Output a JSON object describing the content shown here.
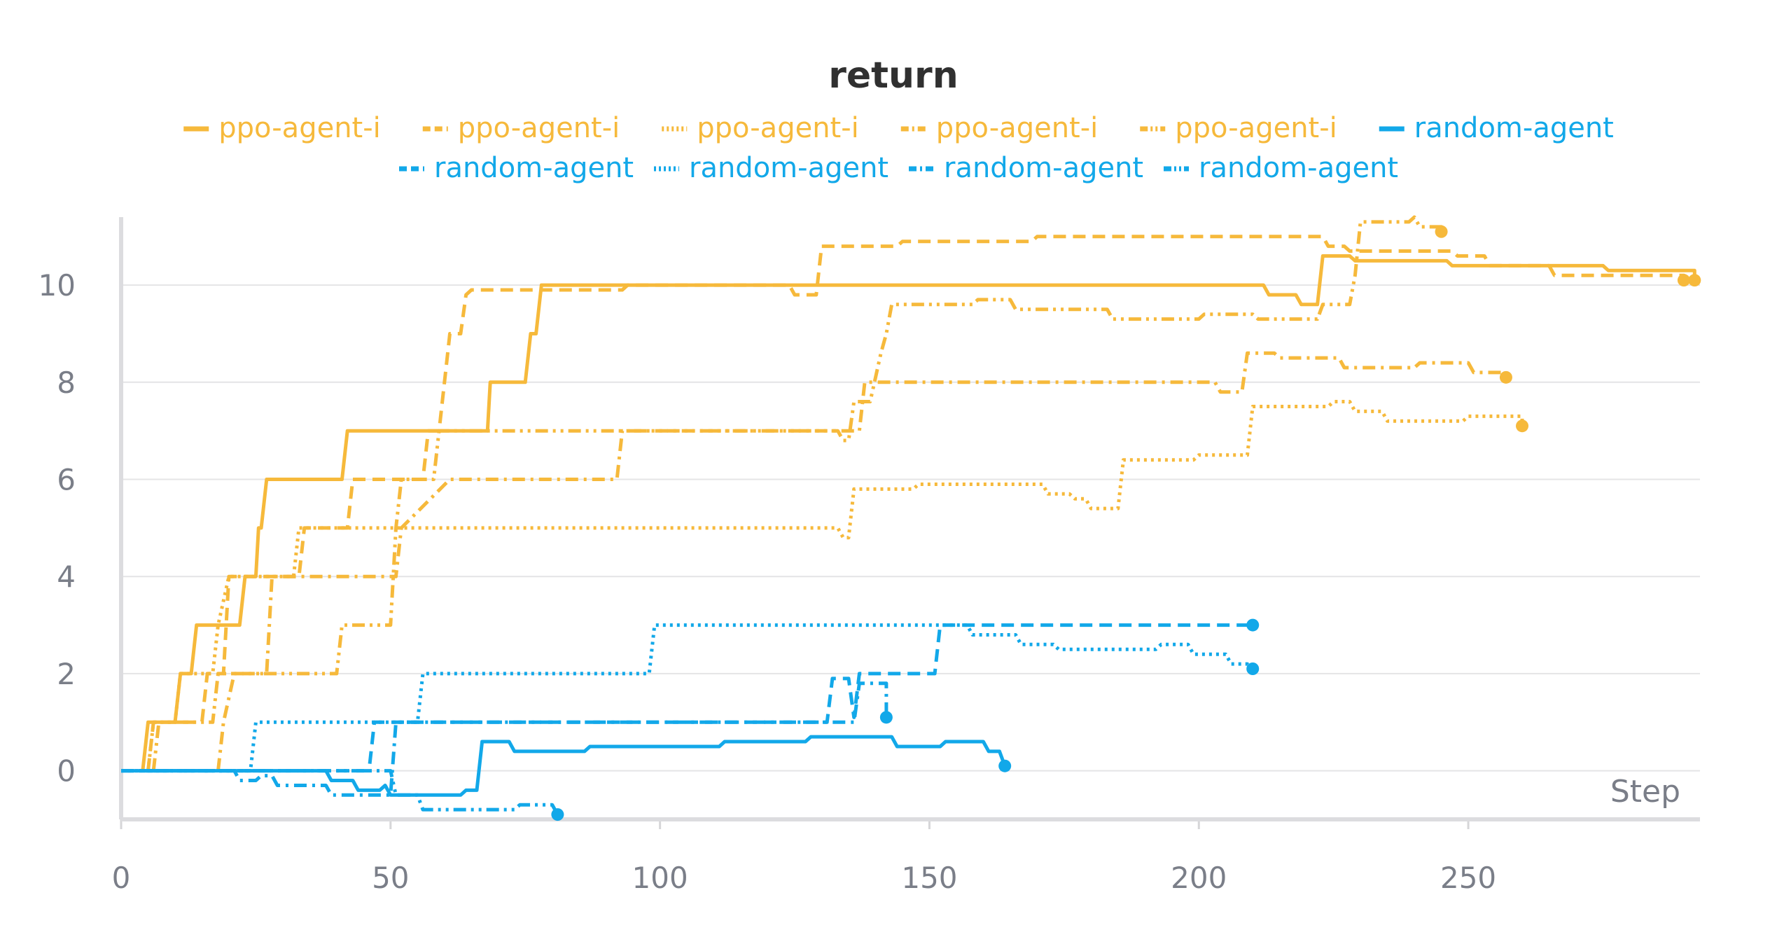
{
  "chart_data": {
    "type": "line",
    "title": "return",
    "xlabel": "Step",
    "ylabel": "",
    "xlim": [
      0,
      293
    ],
    "ylim": [
      -1,
      11.4
    ],
    "xticks": [
      0,
      50,
      100,
      150,
      200,
      250
    ],
    "yticks": [
      0,
      2,
      4,
      6,
      8,
      10
    ],
    "grid": "horizontal",
    "legend_position": "top",
    "colors": {
      "ppo": "#f6b93b",
      "random": "#12a8e9"
    },
    "series": [
      {
        "name": "ppo-agent-i",
        "color": "#f6b93b",
        "dash": "solid",
        "points": [
          [
            4,
            0
          ],
          [
            5,
            1
          ],
          [
            10,
            1
          ],
          [
            11,
            2
          ],
          [
            13,
            2
          ],
          [
            14,
            3
          ],
          [
            22,
            3
          ],
          [
            23,
            4
          ],
          [
            25,
            4
          ],
          [
            25.5,
            5
          ],
          [
            26,
            5
          ],
          [
            27,
            6
          ],
          [
            41,
            6
          ],
          [
            42,
            7
          ],
          [
            68,
            7
          ],
          [
            68.5,
            8
          ],
          [
            75,
            8
          ],
          [
            76,
            9
          ],
          [
            77,
            9
          ],
          [
            78,
            10
          ],
          [
            212,
            10
          ],
          [
            213,
            9.8
          ],
          [
            218,
            9.8
          ],
          [
            219,
            9.6
          ],
          [
            222,
            9.6
          ],
          [
            223,
            10.6
          ],
          [
            228,
            10.6
          ],
          [
            229,
            10.5
          ],
          [
            246,
            10.5
          ],
          [
            247,
            10.4
          ],
          [
            275,
            10.4
          ],
          [
            276,
            10.3
          ],
          [
            292,
            10.3
          ],
          [
            292,
            10.1
          ]
        ]
      },
      {
        "name": "ppo-agent-i",
        "color": "#f6b93b",
        "dash": "dash",
        "points": [
          [
            5,
            0
          ],
          [
            6,
            1
          ],
          [
            15,
            1
          ],
          [
            16,
            2
          ],
          [
            19,
            2
          ],
          [
            20,
            4
          ],
          [
            33,
            4
          ],
          [
            34,
            5
          ],
          [
            42,
            5
          ],
          [
            43,
            6
          ],
          [
            56,
            6
          ],
          [
            57,
            7
          ],
          [
            59,
            7
          ],
          [
            60,
            8
          ],
          [
            61,
            9
          ],
          [
            63,
            9
          ],
          [
            64,
            9.8
          ],
          [
            65,
            9.9
          ],
          [
            77,
            9.9
          ],
          [
            78,
            9.9
          ],
          [
            93,
            9.9
          ],
          [
            94,
            10
          ],
          [
            124,
            10
          ],
          [
            125,
            9.8
          ],
          [
            129,
            9.8
          ],
          [
            130,
            10.8
          ],
          [
            144,
            10.8
          ],
          [
            145,
            10.9
          ],
          [
            169,
            10.9
          ],
          [
            170,
            11
          ],
          [
            223,
            11
          ],
          [
            224,
            10.8
          ],
          [
            227,
            10.8
          ],
          [
            228,
            10.7
          ],
          [
            247,
            10.7
          ],
          [
            248,
            10.6
          ],
          [
            253,
            10.6
          ],
          [
            254,
            10.4
          ],
          [
            265,
            10.4
          ],
          [
            266,
            10.2
          ],
          [
            290,
            10.2
          ],
          [
            290,
            10.1
          ]
        ]
      },
      {
        "name": "ppo-agent-i",
        "color": "#f6b93b",
        "dash": "dot",
        "points": [
          [
            5,
            0
          ],
          [
            6,
            1
          ],
          [
            10,
            1
          ],
          [
            11,
            2
          ],
          [
            17,
            2
          ],
          [
            18,
            3
          ],
          [
            20,
            4
          ],
          [
            32,
            4
          ],
          [
            33,
            5
          ],
          [
            42,
            5
          ],
          [
            43,
            5
          ],
          [
            133,
            5
          ],
          [
            134,
            4.8
          ],
          [
            135,
            4.8
          ],
          [
            136,
            5.8
          ],
          [
            147,
            5.8
          ],
          [
            148,
            5.9
          ],
          [
            171,
            5.9
          ],
          [
            172,
            5.7
          ],
          [
            176,
            5.7
          ],
          [
            177,
            5.6
          ],
          [
            179,
            5.6
          ],
          [
            180,
            5.4
          ],
          [
            185,
            5.4
          ],
          [
            186,
            6.4
          ],
          [
            199,
            6.4
          ],
          [
            200,
            6.5
          ],
          [
            209,
            6.5
          ],
          [
            210,
            7.5
          ],
          [
            224,
            7.5
          ],
          [
            225,
            7.6
          ],
          [
            228,
            7.6
          ],
          [
            229,
            7.4
          ],
          [
            234,
            7.4
          ],
          [
            235,
            7.2
          ],
          [
            249,
            7.2
          ],
          [
            250,
            7.3
          ],
          [
            260,
            7.3
          ],
          [
            260,
            7.1
          ]
        ]
      },
      {
        "name": "ppo-agent-i",
        "color": "#f6b93b",
        "dash": "dashdot",
        "points": [
          [
            18,
            0
          ],
          [
            19,
            1
          ],
          [
            21,
            2
          ],
          [
            27,
            2
          ],
          [
            28,
            4
          ],
          [
            51,
            4
          ],
          [
            52,
            5
          ],
          [
            61,
            6
          ],
          [
            92,
            6
          ],
          [
            93,
            7
          ],
          [
            137,
            7
          ],
          [
            138,
            8
          ],
          [
            166,
            8
          ],
          [
            167,
            8
          ],
          [
            203,
            8
          ],
          [
            204,
            7.8
          ],
          [
            208,
            7.8
          ],
          [
            209,
            8.6
          ],
          [
            214,
            8.6
          ],
          [
            215,
            8.5
          ],
          [
            226,
            8.5
          ],
          [
            227,
            8.3
          ],
          [
            240,
            8.3
          ],
          [
            241,
            8.4
          ],
          [
            250,
            8.4
          ],
          [
            251,
            8.2
          ],
          [
            257,
            8.2
          ],
          [
            257,
            8.1
          ]
        ]
      },
      {
        "name": "ppo-agent-i",
        "color": "#f6b93b",
        "dash": "dashdotdot",
        "points": [
          [
            6,
            0
          ],
          [
            7,
            1
          ],
          [
            17,
            1
          ],
          [
            18,
            2
          ],
          [
            40,
            2
          ],
          [
            41,
            3
          ],
          [
            50,
            3
          ],
          [
            51,
            5
          ],
          [
            52,
            6
          ],
          [
            58,
            6
          ],
          [
            59,
            7
          ],
          [
            133,
            7
          ],
          [
            134,
            6.8
          ],
          [
            135,
            6.8
          ],
          [
            136,
            7.6
          ],
          [
            139,
            7.6
          ],
          [
            140,
            8.1
          ],
          [
            141,
            8.6
          ],
          [
            142,
            9
          ],
          [
            143,
            9.6
          ],
          [
            158,
            9.6
          ],
          [
            159,
            9.7
          ],
          [
            165,
            9.7
          ],
          [
            166,
            9.5
          ],
          [
            183,
            9.5
          ],
          [
            184,
            9.3
          ],
          [
            200,
            9.3
          ],
          [
            201,
            9.4
          ],
          [
            210,
            9.4
          ],
          [
            211,
            9.3
          ],
          [
            222,
            9.3
          ],
          [
            223,
            9.6
          ],
          [
            228,
            9.6
          ],
          [
            229,
            10.2
          ],
          [
            230,
            11.3
          ],
          [
            239,
            11.3
          ],
          [
            240,
            11.4
          ],
          [
            241,
            11.2
          ],
          [
            245,
            11.2
          ],
          [
            245,
            11.1
          ]
        ]
      },
      {
        "name": "random-agent",
        "color": "#12a8e9",
        "dash": "solid",
        "points": [
          [
            0,
            0
          ],
          [
            38,
            0
          ],
          [
            39,
            -0.2
          ],
          [
            43,
            -0.2
          ],
          [
            44,
            -0.4
          ],
          [
            48,
            -0.4
          ],
          [
            49,
            -0.3
          ],
          [
            50,
            -0.5
          ],
          [
            63,
            -0.5
          ],
          [
            64,
            -0.4
          ],
          [
            66,
            -0.4
          ],
          [
            67,
            0.6
          ],
          [
            72,
            0.6
          ],
          [
            73,
            0.4
          ],
          [
            86,
            0.4
          ],
          [
            87,
            0.5
          ],
          [
            111,
            0.5
          ],
          [
            112,
            0.6
          ],
          [
            127,
            0.6
          ],
          [
            128,
            0.7
          ],
          [
            143,
            0.7
          ],
          [
            144,
            0.5
          ],
          [
            152,
            0.5
          ],
          [
            153,
            0.6
          ],
          [
            160,
            0.6
          ],
          [
            161,
            0.4
          ],
          [
            163,
            0.4
          ],
          [
            164,
            0.1
          ]
        ]
      },
      {
        "name": "random-agent",
        "color": "#12a8e9",
        "dash": "dash",
        "points": [
          [
            0,
            0
          ],
          [
            46,
            0
          ],
          [
            47,
            1
          ],
          [
            131,
            1
          ],
          [
            132,
            1.9
          ],
          [
            135,
            1.9
          ],
          [
            136,
            1.1
          ],
          [
            137,
            2
          ],
          [
            151,
            2
          ],
          [
            152,
            3
          ],
          [
            153,
            3
          ],
          [
            210,
            3
          ],
          [
            210,
            3
          ]
        ]
      },
      {
        "name": "random-agent",
        "color": "#12a8e9",
        "dash": "dot",
        "points": [
          [
            0,
            0
          ],
          [
            24,
            0
          ],
          [
            25,
            1
          ],
          [
            55,
            1
          ],
          [
            56,
            2
          ],
          [
            98,
            2
          ],
          [
            99,
            3
          ],
          [
            157,
            3
          ],
          [
            158,
            2.8
          ],
          [
            166,
            2.8
          ],
          [
            167,
            2.6
          ],
          [
            173,
            2.6
          ],
          [
            174,
            2.5
          ],
          [
            192,
            2.5
          ],
          [
            193,
            2.6
          ],
          [
            198,
            2.6
          ],
          [
            199,
            2.4
          ],
          [
            205,
            2.4
          ],
          [
            206,
            2.2
          ],
          [
            209,
            2.2
          ],
          [
            210,
            2.1
          ]
        ]
      },
      {
        "name": "random-agent",
        "color": "#12a8e9",
        "dash": "dashdot",
        "points": [
          [
            0,
            0
          ],
          [
            21,
            0
          ],
          [
            22,
            -0.2
          ],
          [
            25,
            -0.2
          ],
          [
            26,
            -0.1
          ],
          [
            28,
            -0.1
          ],
          [
            29,
            -0.3
          ],
          [
            38,
            -0.3
          ],
          [
            39,
            -0.5
          ],
          [
            50,
            -0.5
          ],
          [
            51,
            1
          ],
          [
            136,
            1
          ],
          [
            137,
            1.8
          ],
          [
            142,
            1.8
          ],
          [
            142,
            1.1
          ]
        ]
      },
      {
        "name": "random-agent",
        "color": "#12a8e9",
        "dash": "dashdotdot",
        "points": [
          [
            0,
            0
          ],
          [
            50,
            0
          ],
          [
            51,
            -0.5
          ],
          [
            55,
            -0.5
          ],
          [
            56,
            -0.8
          ],
          [
            73,
            -0.8
          ],
          [
            74,
            -0.7
          ],
          [
            80,
            -0.7
          ],
          [
            81,
            -0.9
          ]
        ]
      }
    ]
  }
}
